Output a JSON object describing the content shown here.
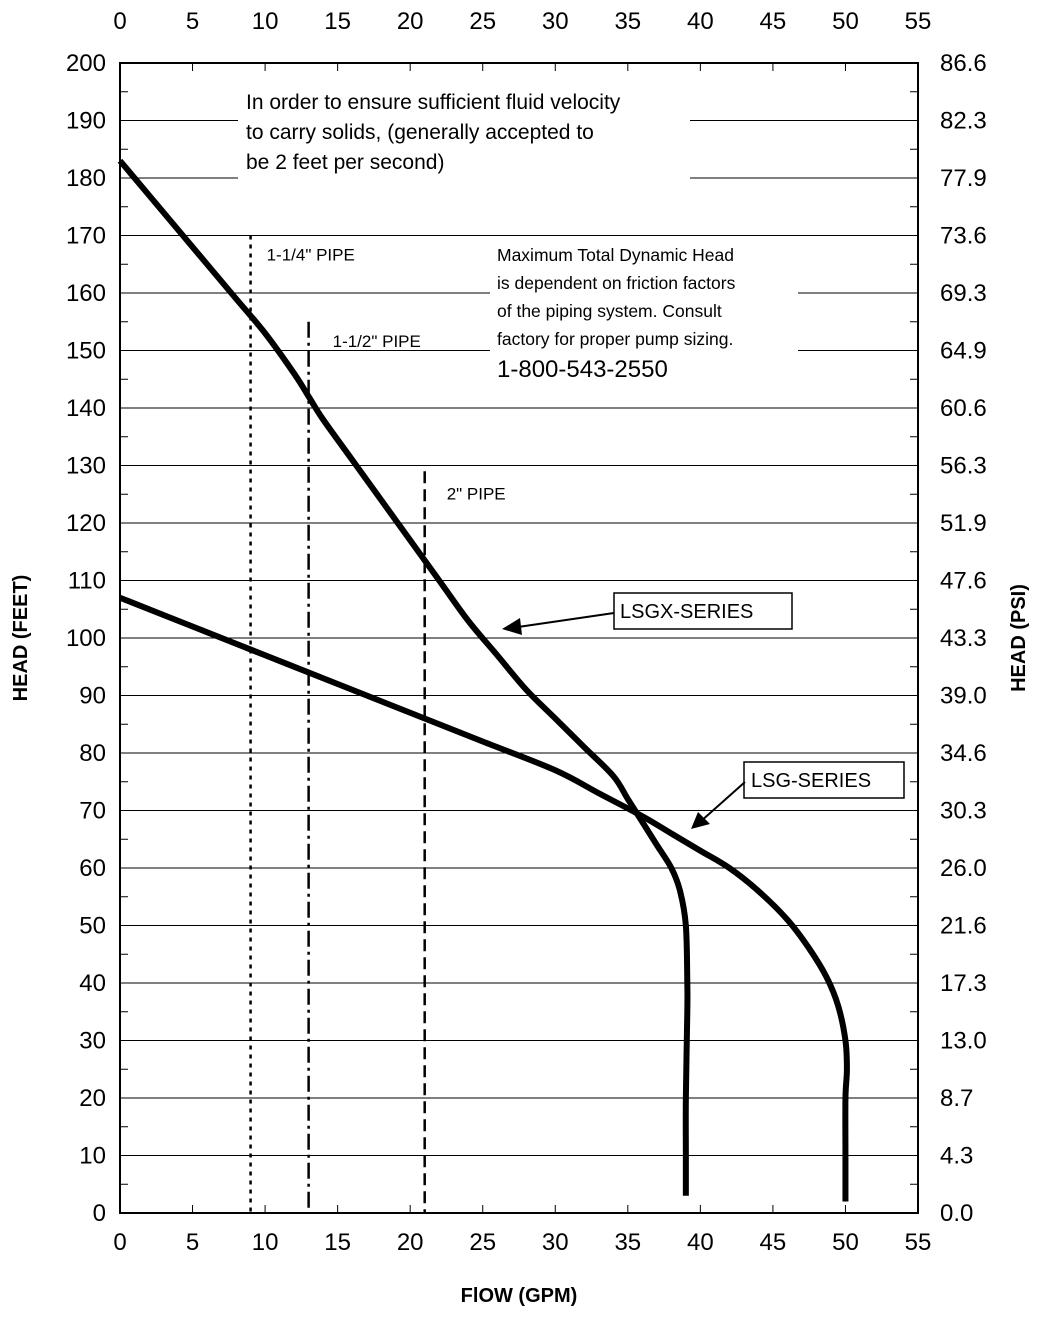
{
  "chart_data": {
    "type": "line",
    "title": "",
    "xlabel": "FlOW (GPM)",
    "ylabel": "HEAD (FEET)",
    "y2label": "HEAD (PSI)",
    "xlim": [
      0,
      55
    ],
    "ylim": [
      0,
      200
    ],
    "x_ticks": [
      "0",
      "5",
      "10",
      "15",
      "20",
      "25",
      "30",
      "35",
      "40",
      "45",
      "50",
      "55"
    ],
    "y_ticks": [
      "0",
      "10",
      "20",
      "30",
      "40",
      "50",
      "60",
      "70",
      "80",
      "90",
      "100",
      "110",
      "120",
      "130",
      "140",
      "150",
      "160",
      "170",
      "180",
      "190",
      "200"
    ],
    "y2_ticks": [
      "0.0",
      "4.3",
      "8.7",
      "13.0",
      "17.3",
      "21.6",
      "26.0",
      "30.3",
      "34.6",
      "39.0",
      "43.3",
      "47.6",
      "51.9",
      "56.3",
      "60.6",
      "64.9",
      "69.3",
      "73.6",
      "77.9",
      "82.3",
      "86.6"
    ],
    "grid": "horizontal",
    "series": [
      {
        "name": "LSGX-SERIES",
        "x": [
          0,
          2,
          4,
          6,
          8,
          10,
          12,
          13,
          14,
          16,
          18,
          20,
          22,
          24,
          26,
          28,
          30,
          32,
          34,
          35,
          36,
          37,
          38,
          38.6,
          39,
          39.1,
          39.1,
          39,
          39,
          39
        ],
        "y": [
          183,
          177,
          171,
          165,
          159,
          153,
          146,
          142,
          138,
          131,
          124,
          117,
          110,
          103,
          97,
          91,
          86,
          81,
          76,
          72,
          68,
          64,
          60,
          56,
          50,
          40,
          35,
          20,
          10,
          3
        ]
      },
      {
        "name": "LSG-SERIES",
        "x": [
          0,
          5,
          10,
          15,
          20,
          25,
          30,
          33,
          36,
          38,
          40,
          42,
          44,
          46,
          47.5,
          48.7,
          49.5,
          50,
          50.1,
          50,
          50,
          50
        ],
        "y": [
          107,
          102,
          97,
          92,
          87,
          82,
          77,
          73,
          69,
          66,
          63,
          60,
          56,
          51,
          46,
          41,
          36,
          30,
          25,
          20,
          10,
          2
        ]
      }
    ],
    "pipe_lines": [
      {
        "label": "1-1/4\" PIPE",
        "x": 9,
        "top": 170,
        "style": "dotted"
      },
      {
        "label": "1-1/2\" PIPE",
        "x": 13,
        "top": 155,
        "style": "dashdot"
      },
      {
        "label": "2\" PIPE",
        "x": 21,
        "top": 129,
        "style": "dashed"
      }
    ],
    "annotations": {
      "velocity_note": [
        "In order to ensure sufficient fluid velocity",
        "to carry solids, (generally accepted to",
        "be 2 feet per second)"
      ],
      "tdh_note": [
        "Maximum Total Dynamic Head",
        "is dependent on friction factors",
        "of the piping system. Consult",
        "factory for proper pump sizing."
      ],
      "phone": "1-800-543-2550"
    }
  }
}
